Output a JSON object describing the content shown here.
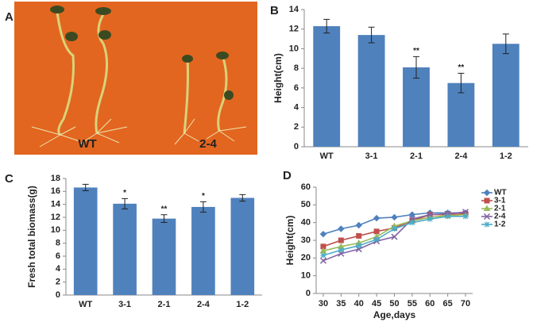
{
  "panel_labels": [
    "A",
    "B",
    "C",
    "D"
  ],
  "photo": {
    "labels": [
      "WT",
      "2-4"
    ]
  },
  "chart_data": [
    {
      "type": "bar",
      "y_label": "Height(cm)",
      "categories": [
        "WT",
        "3-1",
        "2-1",
        "2-4",
        "1-2"
      ],
      "values": [
        12.3,
        11.4,
        8.1,
        6.5,
        10.5
      ],
      "errors": [
        0.7,
        0.8,
        1.1,
        1.0,
        1.0
      ],
      "value_annotations": [
        null,
        null,
        "**",
        "**",
        null
      ],
      "color": "#4f81bd",
      "ylim": [
        0,
        14
      ],
      "yticks": [
        0,
        2,
        4,
        6,
        8,
        10,
        12,
        14
      ]
    },
    {
      "type": "bar",
      "y_label": "Fresh total  biomass(g)",
      "categories": [
        "WT",
        "3-1",
        "2-1",
        "2-4",
        "1-2"
      ],
      "values": [
        16.6,
        14.1,
        11.8,
        13.6,
        15.0
      ],
      "errors": [
        0.5,
        0.8,
        0.6,
        0.8,
        0.5
      ],
      "value_annotations": [
        null,
        "*",
        "**",
        "*",
        null
      ],
      "color": "#4f81bd",
      "ylim": [
        0,
        18
      ],
      "yticks": [
        0,
        2,
        4,
        6,
        8,
        10,
        12,
        14,
        16,
        18
      ]
    },
    {
      "type": "line",
      "x_label": "Age,days",
      "y_label": "Height(cm)",
      "x": [
        30,
        35,
        40,
        45,
        50,
        55,
        60,
        65,
        70
      ],
      "series": [
        {
          "name": "WT",
          "color": "#4f81bd",
          "marker": "diamond",
          "values": [
            33.5,
            36.5,
            38.5,
            42.5,
            43,
            44.5,
            45.5,
            45.5,
            45.5
          ]
        },
        {
          "name": "3-1",
          "color": "#c0504d",
          "marker": "square",
          "values": [
            26.5,
            30,
            32.5,
            35,
            37,
            41,
            44.5,
            44.5,
            45
          ]
        },
        {
          "name": "2-1",
          "color": "#9bbb59",
          "marker": "triangle",
          "values": [
            24,
            26.5,
            28.5,
            32,
            38,
            41,
            43,
            44,
            44.5
          ]
        },
        {
          "name": "2-4",
          "color": "#8064a2",
          "marker": "x",
          "values": [
            18.5,
            22.5,
            25,
            29.5,
            32,
            42,
            44.5,
            45,
            46
          ]
        },
        {
          "name": "1-2",
          "color": "#4bacc6",
          "marker": "star",
          "values": [
            21.5,
            24.5,
            27,
            30.5,
            36.5,
            40,
            42,
            43.5,
            43.5
          ]
        }
      ],
      "xlim": [
        28,
        72
      ],
      "xticks": [
        30,
        35,
        40,
        45,
        50,
        55,
        60,
        65,
        70
      ],
      "ylim": [
        0,
        60
      ],
      "yticks": [
        0,
        10,
        20,
        30,
        40,
        50,
        60
      ]
    }
  ]
}
